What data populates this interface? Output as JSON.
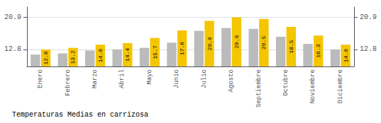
{
  "chart_data": {
    "type": "bar",
    "title": "Temperaturas Medias en carrizosa",
    "categories": [
      "Enero",
      "Febrero",
      "Marzo",
      "Abril",
      "Mayo",
      "Junio",
      "Julio",
      "Agosto",
      "Septiembre",
      "Octubre",
      "Noviembre",
      "Diciembre"
    ],
    "series": [
      {
        "color": "#BBBBBB",
        "values": [
          11.5,
          11.8,
          12.5,
          12.8,
          13.2,
          14.5,
          17.5,
          18.2,
          18.0,
          16.0,
          14.2,
          12.8
        ]
      },
      {
        "color": "#F5C500",
        "values": [
          12.8,
          13.2,
          14.0,
          14.4,
          15.7,
          17.6,
          20.0,
          20.9,
          20.5,
          18.5,
          16.3,
          14.0
        ],
        "data_labels": true,
        "value_labels": [
          "12.8",
          "13.2",
          "14.0",
          "14.4",
          "15.7",
          "17.6",
          "20.0",
          "20.9",
          "20.5",
          "18.5",
          "16.3",
          "14.0"
        ]
      }
    ],
    "ylim": [
      8.5,
      23.5
    ],
    "yticks": [
      12.8,
      20.9
    ],
    "y2lim": [
      8.5,
      23.5
    ],
    "y2ticks": [
      12.8,
      20.9
    ],
    "grid": true
  }
}
